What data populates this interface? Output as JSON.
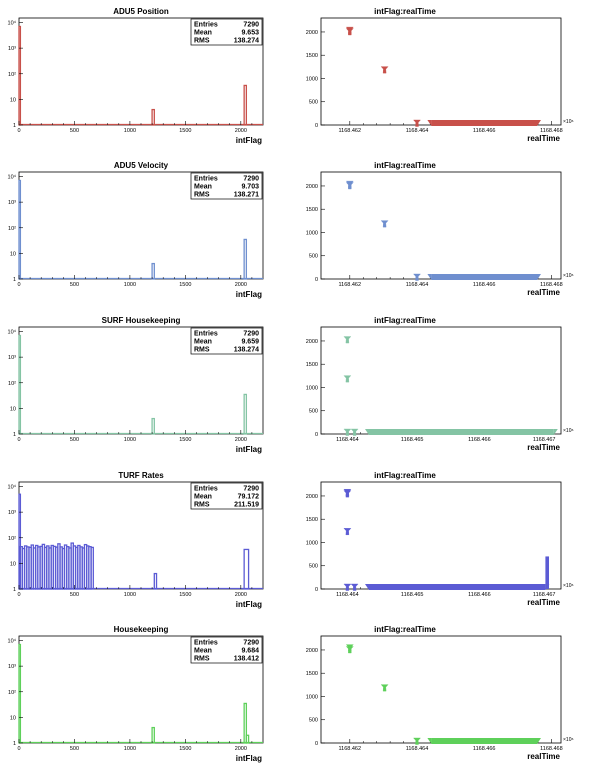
{
  "colors": {
    "background": "#ffffff",
    "axis": "#000000",
    "red": "#c8504a",
    "blue": "#6f8fcf",
    "teal": "#84c4a4",
    "violet": "#5b5bd4",
    "green": "#5ed05a"
  },
  "chart_data": [
    {
      "type": "histogram",
      "title": "ADU5 Position",
      "xlabel": "intFlag",
      "xlim": [
        0,
        2200
      ],
      "ylog": true,
      "ylim": [
        1,
        15000
      ],
      "x_ticks": [
        "0",
        "500",
        "1000",
        "1500",
        "2000"
      ],
      "y_ticks": [
        "1",
        "10",
        "10²",
        "10³",
        "10⁴"
      ],
      "color_key": "red",
      "stats": [
        [
          "Entries",
          "7290"
        ],
        [
          "Mean",
          "9.653"
        ],
        [
          "RMS",
          "138.274"
        ]
      ],
      "bars": [
        {
          "x0": 0,
          "x1": 10,
          "value": 7000
        },
        {
          "x0": 1200,
          "x1": 1220,
          "value": 4
        },
        {
          "x0": 2030,
          "x1": 2050,
          "value": 35
        }
      ]
    },
    {
      "type": "scatter",
      "title": "intFlag:realTime",
      "xlabel": "realTime",
      "ylim": [
        0,
        2300
      ],
      "y_ticks": [
        "0",
        "500",
        "1000",
        "1500",
        "2000"
      ],
      "x_tick_labels": [
        "1168.462",
        "1168.464",
        "1168.466",
        "1168.468"
      ],
      "x_exponent": "×10⁶",
      "color_key": "red",
      "points": [
        {
          "x": 0.12,
          "y": 2040
        },
        {
          "x": 0.12,
          "y": 2010
        },
        {
          "x": 0.265,
          "y": 1190
        },
        {
          "x": 0.4,
          "y": 0
        }
      ],
      "band": {
        "x0": 0.46,
        "x1": 0.9,
        "y": 0
      }
    },
    {
      "type": "histogram",
      "title": "ADU5 Velocity",
      "xlabel": "intFlag",
      "xlim": [
        0,
        2200
      ],
      "ylog": true,
      "ylim": [
        1,
        15000
      ],
      "x_ticks": [
        "0",
        "500",
        "1000",
        "1500",
        "2000"
      ],
      "y_ticks": [
        "1",
        "10",
        "10²",
        "10³",
        "10⁴"
      ],
      "color_key": "blue",
      "stats": [
        [
          "Entries",
          "7290"
        ],
        [
          "Mean",
          "9.703"
        ],
        [
          "RMS",
          "138.271"
        ]
      ],
      "bars": [
        {
          "x0": 0,
          "x1": 10,
          "value": 7000
        },
        {
          "x0": 1200,
          "x1": 1220,
          "value": 4
        },
        {
          "x0": 2030,
          "x1": 2050,
          "value": 35
        }
      ]
    },
    {
      "type": "scatter",
      "title": "intFlag:realTime",
      "xlabel": "realTime",
      "ylim": [
        0,
        2300
      ],
      "y_ticks": [
        "0",
        "500",
        "1000",
        "1500",
        "2000"
      ],
      "x_tick_labels": [
        "1168.462",
        "1168.464",
        "1168.466",
        "1168.468"
      ],
      "x_exponent": "×10⁶",
      "color_key": "blue",
      "points": [
        {
          "x": 0.12,
          "y": 2040
        },
        {
          "x": 0.12,
          "y": 2010
        },
        {
          "x": 0.265,
          "y": 1190
        },
        {
          "x": 0.4,
          "y": 0
        }
      ],
      "band": {
        "x0": 0.46,
        "x1": 0.9,
        "y": 0
      }
    },
    {
      "type": "histogram",
      "title": "SURF Housekeeping",
      "xlabel": "intFlag",
      "xlim": [
        0,
        2200
      ],
      "ylog": true,
      "ylim": [
        1,
        15000
      ],
      "x_ticks": [
        "0",
        "500",
        "1000",
        "1500",
        "2000"
      ],
      "y_ticks": [
        "1",
        "10",
        "10²",
        "10³",
        "10⁴"
      ],
      "color_key": "teal",
      "stats": [
        [
          "Entries",
          "7290"
        ],
        [
          "Mean",
          "9.659"
        ],
        [
          "RMS",
          "138.274"
        ]
      ],
      "bars": [
        {
          "x0": 0,
          "x1": 10,
          "value": 7000
        },
        {
          "x0": 1200,
          "x1": 1220,
          "value": 4
        },
        {
          "x0": 2030,
          "x1": 2050,
          "value": 35
        }
      ]
    },
    {
      "type": "scatter",
      "title": "intFlag:realTime",
      "xlabel": "realTime",
      "ylim": [
        0,
        2300
      ],
      "y_ticks": [
        "0",
        "500",
        "1000",
        "1500",
        "2000"
      ],
      "x_tick_labels": [
        "1168.464",
        "1168.465",
        "1168.466",
        "1168.467"
      ],
      "x_exponent": "×10⁶",
      "color_key": "teal",
      "points": [
        {
          "x": 0.11,
          "y": 2030
        },
        {
          "x": 0.11,
          "y": 1190
        },
        {
          "x": 0.11,
          "y": 0
        },
        {
          "x": 0.14,
          "y": 0
        }
      ],
      "band": {
        "x0": 0.2,
        "x1": 0.97,
        "y": 0
      }
    },
    {
      "type": "histogram",
      "title": "TURF Rates",
      "xlabel": "intFlag",
      "xlim": [
        0,
        2200
      ],
      "ylog": true,
      "ylim": [
        1,
        15000
      ],
      "x_ticks": [
        "0",
        "500",
        "1000",
        "1500",
        "2000"
      ],
      "y_ticks": [
        "1",
        "10",
        "10²",
        "10³",
        "10⁴"
      ],
      "color_key": "violet",
      "stats": [
        [
          "Entries",
          "7290"
        ],
        [
          "Mean",
          "79.172"
        ],
        [
          "RMS",
          "211.519"
        ]
      ],
      "bars": [
        {
          "x0": 0,
          "x1": 10,
          "value": 5000
        },
        {
          "x0": 10,
          "x1": 30,
          "value": 45
        },
        {
          "x0": 30,
          "x1": 50,
          "value": 38
        },
        {
          "x0": 50,
          "x1": 70,
          "value": 48
        },
        {
          "x0": 70,
          "x1": 90,
          "value": 44
        },
        {
          "x0": 90,
          "x1": 110,
          "value": 42
        },
        {
          "x0": 110,
          "x1": 130,
          "value": 52
        },
        {
          "x0": 130,
          "x1": 150,
          "value": 40
        },
        {
          "x0": 150,
          "x1": 170,
          "value": 50
        },
        {
          "x0": 170,
          "x1": 190,
          "value": 44
        },
        {
          "x0": 190,
          "x1": 210,
          "value": 46
        },
        {
          "x0": 210,
          "x1": 230,
          "value": 55
        },
        {
          "x0": 230,
          "x1": 250,
          "value": 42
        },
        {
          "x0": 250,
          "x1": 270,
          "value": 48
        },
        {
          "x0": 270,
          "x1": 290,
          "value": 40
        },
        {
          "x0": 290,
          "x1": 310,
          "value": 50
        },
        {
          "x0": 310,
          "x1": 330,
          "value": 46
        },
        {
          "x0": 330,
          "x1": 350,
          "value": 43
        },
        {
          "x0": 350,
          "x1": 370,
          "value": 58
        },
        {
          "x0": 370,
          "x1": 390,
          "value": 44
        },
        {
          "x0": 390,
          "x1": 410,
          "value": 38
        },
        {
          "x0": 410,
          "x1": 430,
          "value": 52
        },
        {
          "x0": 430,
          "x1": 450,
          "value": 45
        },
        {
          "x0": 450,
          "x1": 470,
          "value": 40
        },
        {
          "x0": 470,
          "x1": 490,
          "value": 62
        },
        {
          "x0": 490,
          "x1": 510,
          "value": 48
        },
        {
          "x0": 510,
          "x1": 530,
          "value": 42
        },
        {
          "x0": 530,
          "x1": 550,
          "value": 50
        },
        {
          "x0": 550,
          "x1": 570,
          "value": 44
        },
        {
          "x0": 570,
          "x1": 590,
          "value": 40
        },
        {
          "x0": 590,
          "x1": 610,
          "value": 54
        },
        {
          "x0": 610,
          "x1": 630,
          "value": 48
        },
        {
          "x0": 630,
          "x1": 650,
          "value": 45
        },
        {
          "x0": 650,
          "x1": 670,
          "value": 42
        },
        {
          "x0": 1220,
          "x1": 1240,
          "value": 4
        },
        {
          "x0": 2030,
          "x1": 2070,
          "value": 35
        }
      ]
    },
    {
      "type": "scatter",
      "title": "intFlag:realTime",
      "xlabel": "realTime",
      "ylim": [
        0,
        2300
      ],
      "y_ticks": [
        "0",
        "500",
        "1000",
        "1500",
        "2000"
      ],
      "x_tick_labels": [
        "1168.464",
        "1168.465",
        "1168.466",
        "1168.467"
      ],
      "x_exponent": "×10⁶",
      "color_key": "violet",
      "points": [
        {
          "x": 0.11,
          "y": 2080
        },
        {
          "x": 0.11,
          "y": 2050
        },
        {
          "x": 0.11,
          "y": 1240
        },
        {
          "x": 0.11,
          "y": 0
        },
        {
          "x": 0.14,
          "y": 0
        }
      ],
      "band": {
        "x0": 0.2,
        "x1": 0.935,
        "y": 0
      },
      "spike": {
        "x0": 0.935,
        "x1": 0.95,
        "y": 700
      }
    },
    {
      "type": "histogram",
      "title": "Housekeeping",
      "xlabel": "intFlag",
      "xlim": [
        0,
        2200
      ],
      "ylog": true,
      "ylim": [
        1,
        15000
      ],
      "x_ticks": [
        "0",
        "500",
        "1000",
        "1500",
        "2000"
      ],
      "y_ticks": [
        "1",
        "10",
        "10²",
        "10³",
        "10⁴"
      ],
      "color_key": "green",
      "stats": [
        [
          "Entries",
          "7290"
        ],
        [
          "Mean",
          "9.684"
        ],
        [
          "RMS",
          "138.412"
        ]
      ],
      "bars": [
        {
          "x0": 0,
          "x1": 10,
          "value": 7000
        },
        {
          "x0": 1200,
          "x1": 1220,
          "value": 4
        },
        {
          "x0": 2030,
          "x1": 2050,
          "value": 35
        },
        {
          "x0": 2050,
          "x1": 2070,
          "value": 2
        }
      ]
    },
    {
      "type": "scatter",
      "title": "intFlag:realTime",
      "xlabel": "realTime",
      "ylim": [
        0,
        2300
      ],
      "y_ticks": [
        "0",
        "500",
        "1000",
        "1500",
        "2000"
      ],
      "x_tick_labels": [
        "1168.462",
        "1168.464",
        "1168.466",
        "1168.468"
      ],
      "x_exponent": "×10⁶",
      "color_key": "green",
      "points": [
        {
          "x": 0.12,
          "y": 2050
        },
        {
          "x": 0.12,
          "y": 2010
        },
        {
          "x": 0.265,
          "y": 1190
        },
        {
          "x": 0.4,
          "y": 0
        }
      ],
      "band": {
        "x0": 0.46,
        "x1": 0.9,
        "y": 0
      }
    }
  ]
}
